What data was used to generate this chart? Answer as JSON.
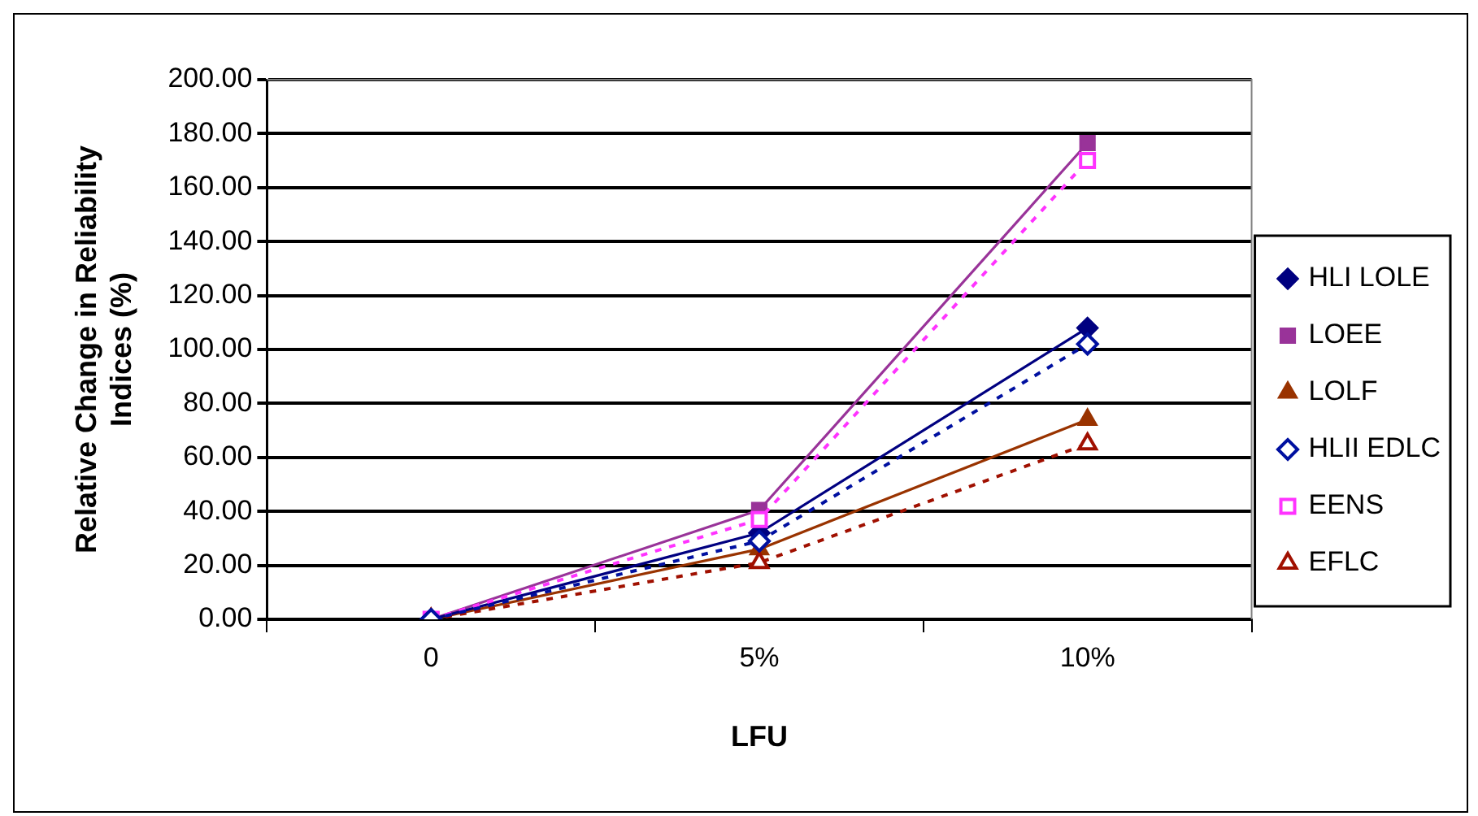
{
  "chart_data": {
    "type": "line",
    "xlabel": "LFU",
    "ylabel": "Relative Change in Reliability Indices (%)",
    "categories": [
      "0",
      "5%",
      "10%"
    ],
    "series": [
      {
        "name": "HLI LOLE",
        "color": "#000080",
        "values": [
          0,
          32,
          108
        ],
        "marker": "diamond",
        "line_style": "solid"
      },
      {
        "name": "LOEE",
        "color": "#993399",
        "values": [
          0,
          40.5,
          176.5
        ],
        "marker": "square",
        "line_style": "solid"
      },
      {
        "name": "LOLF",
        "color": "#993300",
        "values": [
          0,
          26,
          74
        ],
        "marker": "triangle",
        "line_style": "solid"
      },
      {
        "name": "HLII EDLC",
        "color": "#0010a0",
        "values": [
          0,
          29,
          102
        ],
        "marker": "diamond",
        "line_style": "dashed"
      },
      {
        "name": "EENS",
        "color": "#ff33ff",
        "values": [
          0,
          37,
          170
        ],
        "marker": "square",
        "line_style": "dashed"
      },
      {
        "name": "EFLC",
        "color": "#a01000",
        "values": [
          0,
          21,
          65
        ],
        "marker": "triangle",
        "line_style": "dashed"
      }
    ],
    "ylim": [
      0,
      200
    ],
    "yticks": [
      {
        "value": 0,
        "label": "0.00"
      },
      {
        "value": 20,
        "label": "20.00"
      },
      {
        "value": 40,
        "label": "40.00"
      },
      {
        "value": 60,
        "label": "60.00"
      },
      {
        "value": 80,
        "label": "80.00"
      },
      {
        "value": 100,
        "label": "100.00"
      },
      {
        "value": 120,
        "label": "120.00"
      },
      {
        "value": 140,
        "label": "140.00"
      },
      {
        "value": 160,
        "label": "160.00"
      },
      {
        "value": 180,
        "label": "180.00"
      },
      {
        "value": 200,
        "label": "200.00"
      }
    ],
    "grid": "y",
    "legend": "right"
  }
}
